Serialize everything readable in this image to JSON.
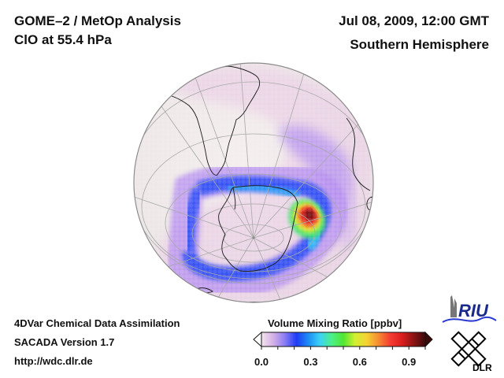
{
  "header": {
    "title_line1": "GOME–2 / MetOp Analysis",
    "title_line2": "ClO at 55.4 hPa",
    "date": "Jul 08, 2009, 12:00 GMT",
    "hemisphere": "Southern Hemisphere"
  },
  "footer": {
    "line1": "4DVar Chemical Data Assimilation",
    "line2": "SACADA Version 1.7",
    "line3": "http://wdc.dlr.de"
  },
  "colorbar": {
    "title": "Volume Mixing Ratio [ppbv]",
    "min": 0.0,
    "max": 1.0,
    "tick_labels": [
      "0.0",
      "0.3",
      "0.6",
      "0.9"
    ],
    "tick_values": [
      0.0,
      0.3,
      0.6,
      0.9
    ],
    "extend": "both",
    "colors": [
      "#f3e6ee",
      "#d6b0e6",
      "#8a7cf5",
      "#1e3cf5",
      "#1e8cf5",
      "#3cd2f5",
      "#4cf08a",
      "#50e632",
      "#d2f032",
      "#f5d232",
      "#f58c32",
      "#f53c32",
      "#dc1e1e",
      "#8c1414",
      "#3c0a0a"
    ]
  },
  "map": {
    "projection": "orthographic",
    "hemisphere": "south",
    "ocean_color": "#efeaea",
    "coast_color": "#222222",
    "grid_color": "#a8a8a8",
    "field": "ClO volume mixing ratio"
  },
  "logos": {
    "riu": "RIU",
    "dlr": "DLR"
  }
}
